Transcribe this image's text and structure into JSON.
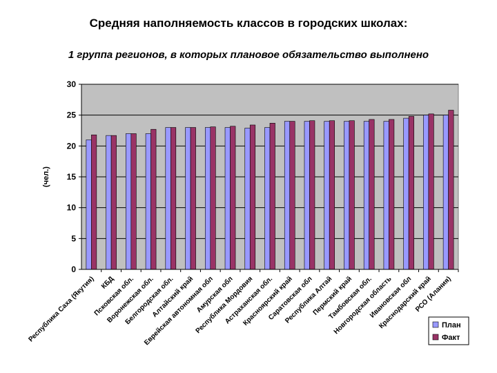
{
  "page": {
    "title": "Средняя наполняемость классов в городских школах:",
    "subtitle": "1 группа регионов, в которых плановое обязательство выполнено"
  },
  "colors": {
    "plot_background": "#c0c0c0",
    "plan": "#9999ff",
    "fact": "#993366"
  },
  "chart_data": {
    "type": "bar",
    "ylabel": "(чел.)",
    "xlabel": "",
    "ylim": [
      0,
      30
    ],
    "yticks": [
      0,
      5,
      10,
      15,
      20,
      25,
      30
    ],
    "grid": "horizontal",
    "legend_position": "right",
    "categories": [
      "Республика Саха (Якутия)",
      "КБД",
      "Псковская обл.",
      "Воронежская обл.",
      "Белгородская обл.",
      "Алтайский край",
      "Еврейская автономная обл",
      "Амурская обл",
      "Республика Мордовия",
      "Астраханская обл.",
      "Красноярский край",
      "Саратовская обл",
      "Республика Алтай",
      "Пермский край",
      "Тамбовская обл.",
      "Новгородская область",
      "Ивановская обл",
      "Краснодарский край",
      "РСО (Алания)"
    ],
    "series": [
      {
        "name": "План",
        "color": "#9999ff",
        "values": [
          21,
          21.7,
          22,
          22,
          23,
          23,
          23,
          23,
          22.9,
          23,
          24,
          24,
          24,
          24,
          24,
          24,
          24.5,
          25,
          25
        ]
      },
      {
        "name": "Факт",
        "color": "#993366",
        "values": [
          21.8,
          21.7,
          22,
          22.7,
          23,
          23,
          23.1,
          23.2,
          23.4,
          23.7,
          24,
          24.1,
          24.1,
          24.1,
          24.3,
          24.3,
          24.8,
          25.2,
          25.8
        ]
      }
    ]
  }
}
